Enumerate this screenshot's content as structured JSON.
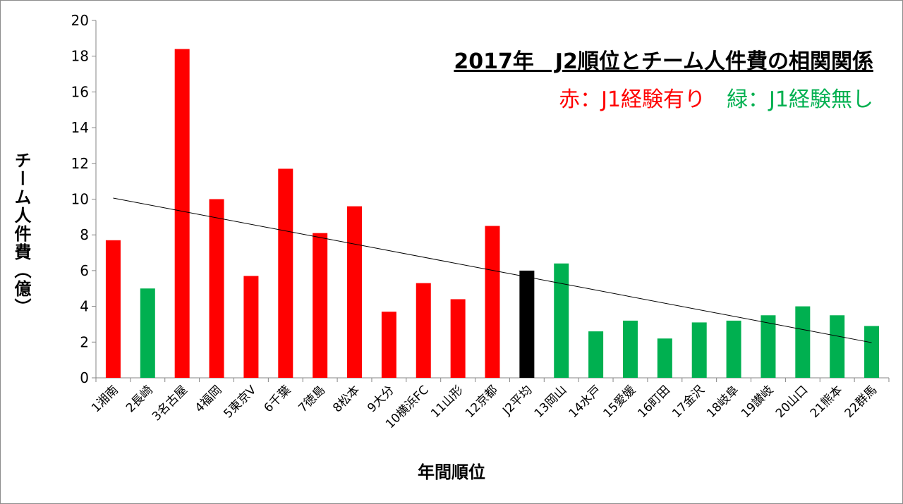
{
  "chart_data": {
    "type": "bar",
    "title": "2017年　J2順位とチーム人件費の相関関係",
    "legend": [
      {
        "label": "赤：J1経験有り",
        "color": "#ff0000"
      },
      {
        "label": "緑：J1経験無し",
        "color": "#00b050"
      }
    ],
    "xlabel": "年間順位",
    "ylabel": "チーム人件費（億）",
    "ylim": [
      0,
      20
    ],
    "yticks": [
      0,
      2,
      4,
      6,
      8,
      10,
      12,
      14,
      16,
      18,
      20
    ],
    "grid": false,
    "categories": [
      "1湘南",
      "2長崎",
      "3名古屋",
      "4福岡",
      "5東京V",
      "6千葉",
      "7徳島",
      "8松本",
      "9大分",
      "10横浜FC",
      "11山形",
      "12京都",
      "J2平均",
      "13岡山",
      "14水戸",
      "15愛媛",
      "16町田",
      "17金沢",
      "18岐阜",
      "19讃岐",
      "20山口",
      "21熊本",
      "22群馬"
    ],
    "values": [
      7.7,
      5.0,
      18.4,
      10.0,
      5.7,
      11.7,
      8.1,
      9.6,
      3.7,
      5.3,
      4.4,
      8.5,
      6.0,
      6.4,
      2.6,
      3.2,
      2.2,
      3.1,
      3.2,
      3.5,
      4.0,
      3.5,
      2.9
    ],
    "colors": [
      "#ff0000",
      "#00b050",
      "#ff0000",
      "#ff0000",
      "#ff0000",
      "#ff0000",
      "#ff0000",
      "#ff0000",
      "#ff0000",
      "#ff0000",
      "#ff0000",
      "#ff0000",
      "#000000",
      "#00b050",
      "#00b050",
      "#00b050",
      "#00b050",
      "#00b050",
      "#00b050",
      "#00b050",
      "#00b050",
      "#00b050",
      "#00b050"
    ],
    "trendline": {
      "type": "linear",
      "start": 10.06,
      "end": 1.97,
      "color": "#000000"
    }
  }
}
